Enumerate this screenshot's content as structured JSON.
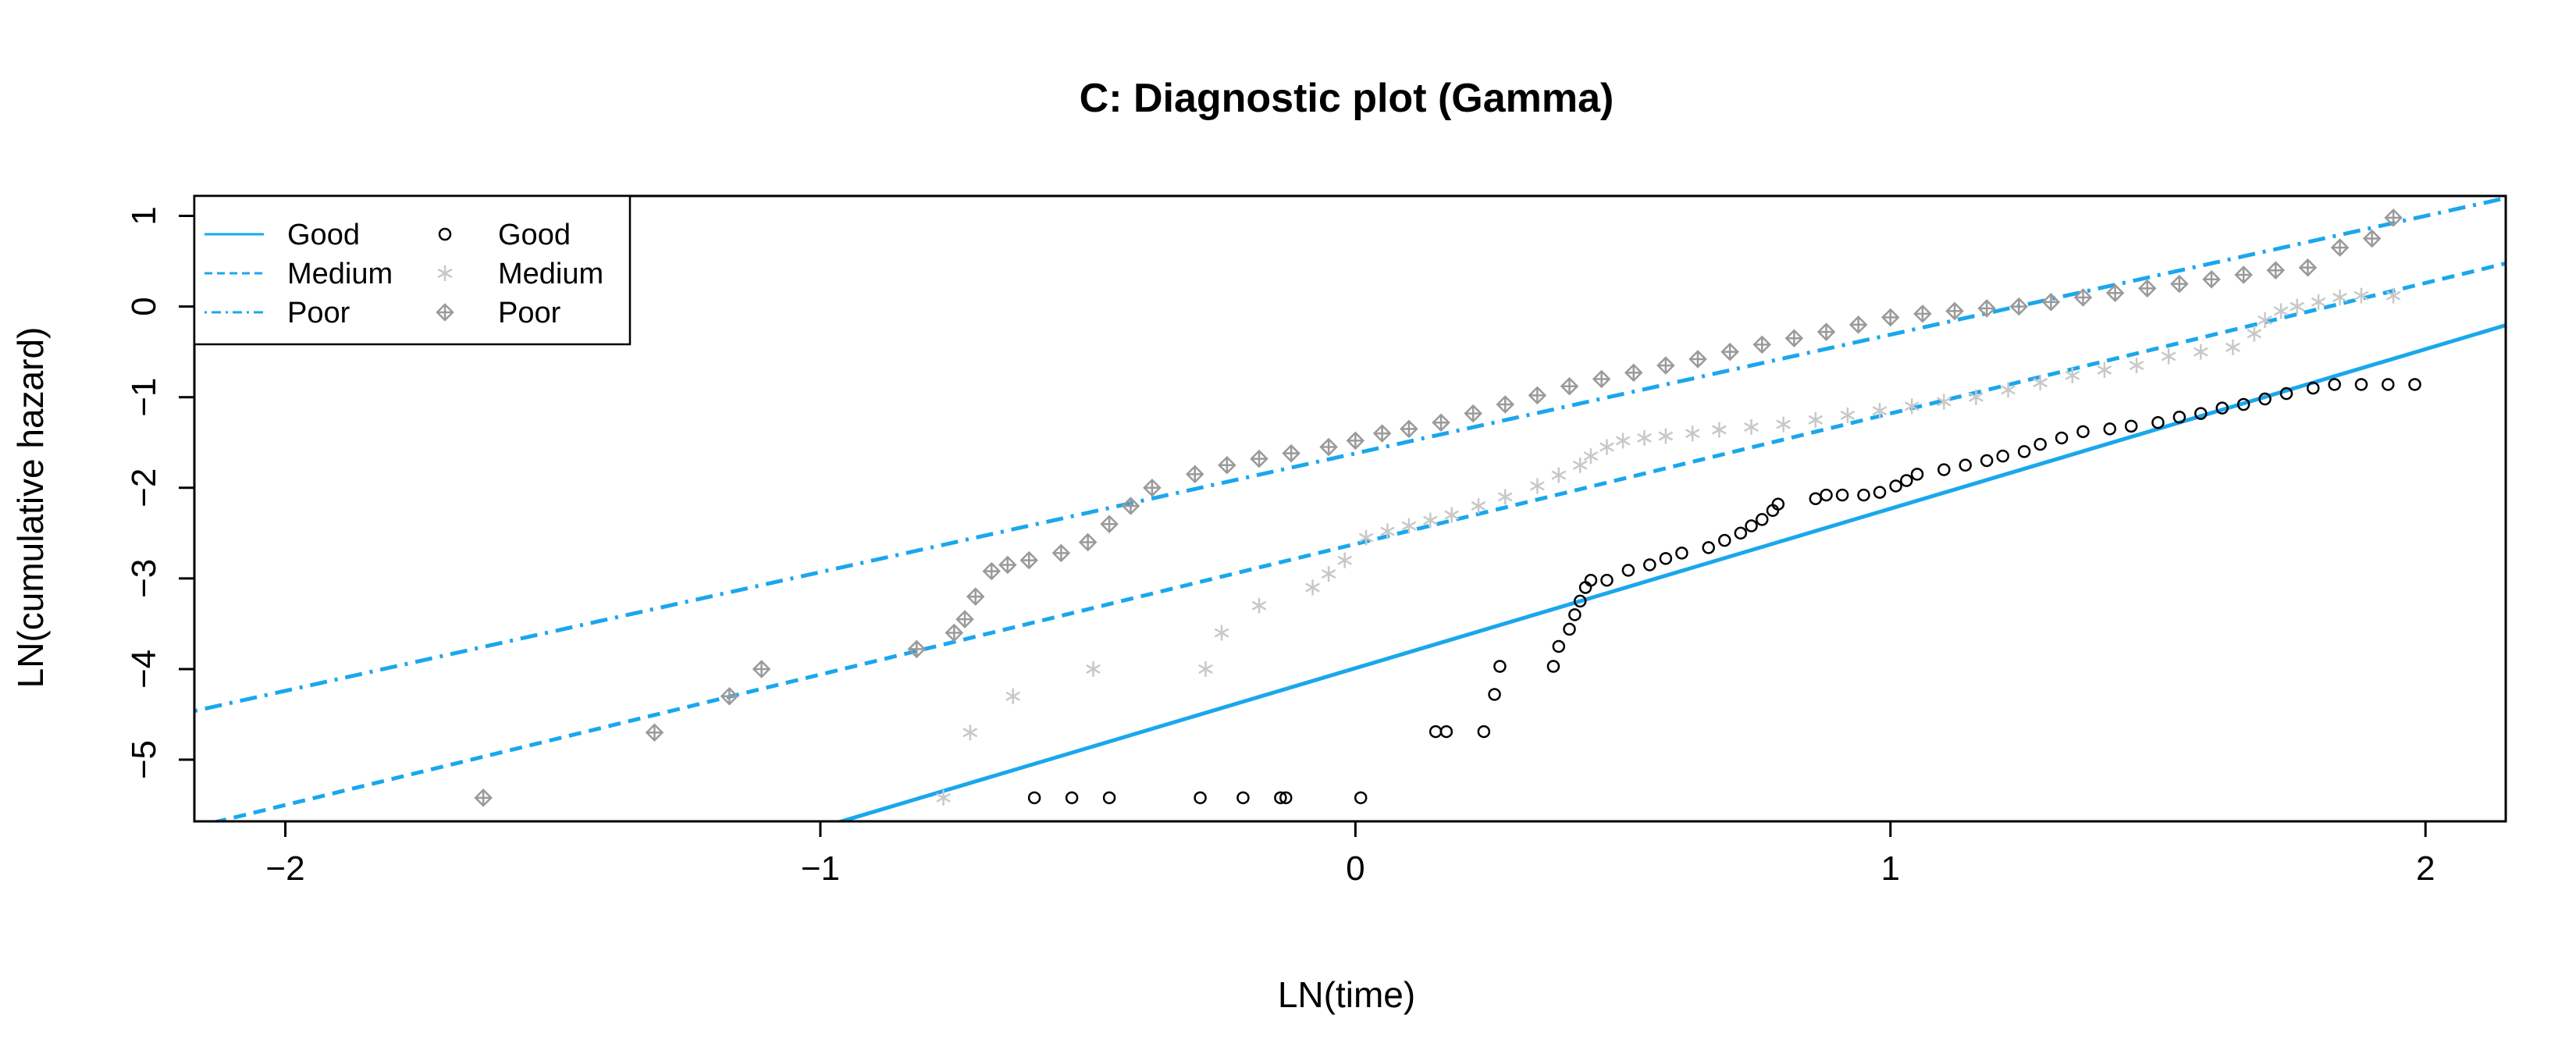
{
  "chart_data": {
    "type": "scatter",
    "title": "C: Diagnostic plot (Gamma)",
    "xlabel": "LN(time)",
    "ylabel": "LN(cumulative hazard)",
    "xlim": [
      -2.17,
      2.15
    ],
    "ylim": [
      -5.68,
      1.22
    ],
    "xticks": [
      -2,
      -1,
      0,
      1,
      2
    ],
    "yticks": [
      -5,
      -4,
      -3,
      -2,
      -1,
      0,
      1
    ],
    "grid": false,
    "legend_position": "top-left",
    "colors": {
      "line": "#1aa7ec",
      "good_points": "#000000",
      "medium_points": "#c8c8c8",
      "poor_points": "#9a9a9a"
    },
    "lines": [
      {
        "name": "Good",
        "style": "solid",
        "intercept": -3.99,
        "slope": 1.76
      },
      {
        "name": "Medium",
        "style": "dashed",
        "intercept": -2.62,
        "slope": 1.44
      },
      {
        "name": "Poor",
        "style": "dotdash",
        "intercept": -1.62,
        "slope": 1.31
      }
    ],
    "series": [
      {
        "name": "Good",
        "marker": "circle",
        "x": [
          -0.6,
          -0.53,
          -0.46,
          -0.29,
          -0.21,
          -0.14,
          -0.13,
          0.01,
          0.15,
          0.17,
          0.24,
          0.26,
          0.27,
          0.37,
          0.38,
          0.4,
          0.41,
          0.42,
          0.43,
          0.44,
          0.47,
          0.51,
          0.55,
          0.58,
          0.61,
          0.66,
          0.69,
          0.72,
          0.74,
          0.76,
          0.78,
          0.79,
          0.86,
          0.88,
          0.91,
          0.95,
          0.98,
          1.01,
          1.03,
          1.05,
          1.1,
          1.14,
          1.18,
          1.21,
          1.25,
          1.28,
          1.32,
          1.36,
          1.41,
          1.45,
          1.5,
          1.54,
          1.58,
          1.62,
          1.66,
          1.7,
          1.74,
          1.79,
          1.83,
          1.88,
          1.93,
          1.98
        ],
        "y": [
          -5.42,
          -5.42,
          -5.42,
          -5.42,
          -5.42,
          -5.42,
          -5.42,
          -5.42,
          -4.69,
          -4.69,
          -4.69,
          -4.28,
          -3.97,
          -3.97,
          -3.75,
          -3.56,
          -3.4,
          -3.25,
          -3.1,
          -3.02,
          -3.02,
          -2.91,
          -2.85,
          -2.78,
          -2.72,
          -2.66,
          -2.58,
          -2.5,
          -2.42,
          -2.35,
          -2.25,
          -2.18,
          -2.12,
          -2.08,
          -2.08,
          -2.08,
          -2.05,
          -1.98,
          -1.92,
          -1.85,
          -1.8,
          -1.75,
          -1.7,
          -1.65,
          -1.6,
          -1.52,
          -1.45,
          -1.38,
          -1.35,
          -1.32,
          -1.28,
          -1.22,
          -1.18,
          -1.12,
          -1.08,
          -1.02,
          -0.96,
          -0.9,
          -0.86,
          -0.86,
          -0.86,
          -0.86
        ]
      },
      {
        "name": "Medium",
        "marker": "asterisk",
        "x": [
          -0.77,
          -0.72,
          -0.64,
          -0.49,
          -0.28,
          -0.25,
          -0.18,
          -0.08,
          -0.05,
          -0.02,
          0.02,
          0.06,
          0.1,
          0.14,
          0.18,
          0.23,
          0.28,
          0.34,
          0.38,
          0.42,
          0.44,
          0.47,
          0.5,
          0.54,
          0.58,
          0.63,
          0.68,
          0.74,
          0.8,
          0.86,
          0.92,
          0.98,
          1.04,
          1.1,
          1.16,
          1.22,
          1.28,
          1.34,
          1.4,
          1.46,
          1.52,
          1.58,
          1.64,
          1.68,
          1.7,
          1.73,
          1.76,
          1.8,
          1.84,
          1.88,
          1.94
        ],
        "y": [
          -5.42,
          -4.7,
          -4.3,
          -4.0,
          -4.0,
          -3.6,
          -3.3,
          -3.1,
          -2.95,
          -2.8,
          -2.55,
          -2.48,
          -2.42,
          -2.36,
          -2.3,
          -2.2,
          -2.1,
          -1.98,
          -1.86,
          -1.75,
          -1.65,
          -1.55,
          -1.48,
          -1.45,
          -1.43,
          -1.4,
          -1.36,
          -1.33,
          -1.3,
          -1.25,
          -1.2,
          -1.15,
          -1.1,
          -1.05,
          -1.0,
          -0.92,
          -0.84,
          -0.76,
          -0.7,
          -0.65,
          -0.55,
          -0.5,
          -0.45,
          -0.3,
          -0.15,
          -0.05,
          0.0,
          0.05,
          0.1,
          0.12,
          0.12
        ]
      },
      {
        "name": "Poor",
        "marker": "diamond-plus",
        "x": [
          -1.63,
          -1.31,
          -1.17,
          -1.11,
          -0.82,
          -0.75,
          -0.73,
          -0.71,
          -0.68,
          -0.65,
          -0.61,
          -0.55,
          -0.5,
          -0.46,
          -0.42,
          -0.38,
          -0.3,
          -0.24,
          -0.18,
          -0.12,
          -0.05,
          0.0,
          0.05,
          0.1,
          0.16,
          0.22,
          0.28,
          0.34,
          0.4,
          0.46,
          0.52,
          0.58,
          0.64,
          0.7,
          0.76,
          0.82,
          0.88,
          0.94,
          1.0,
          1.06,
          1.12,
          1.18,
          1.24,
          1.3,
          1.36,
          1.42,
          1.48,
          1.54,
          1.6,
          1.66,
          1.72,
          1.78,
          1.84,
          1.9,
          1.94
        ],
        "y": [
          -5.42,
          -4.7,
          -4.3,
          -4.0,
          -3.78,
          -3.6,
          -3.45,
          -3.2,
          -2.92,
          -2.85,
          -2.8,
          -2.72,
          -2.6,
          -2.4,
          -2.2,
          -2.0,
          -1.85,
          -1.75,
          -1.68,
          -1.62,
          -1.55,
          -1.48,
          -1.4,
          -1.35,
          -1.28,
          -1.18,
          -1.08,
          -0.98,
          -0.88,
          -0.8,
          -0.73,
          -0.65,
          -0.58,
          -0.5,
          -0.42,
          -0.35,
          -0.28,
          -0.2,
          -0.12,
          -0.08,
          -0.05,
          -0.02,
          0.0,
          0.05,
          0.1,
          0.15,
          0.2,
          0.25,
          0.3,
          0.35,
          0.4,
          0.43,
          0.65,
          0.75,
          0.98
        ]
      }
    ]
  },
  "legend": {
    "lines": [
      {
        "label": "Good",
        "style": "solid"
      },
      {
        "label": "Medium",
        "style": "dashed"
      },
      {
        "label": "Poor",
        "style": "dotdash"
      }
    ],
    "points": [
      {
        "label": "Good",
        "marker": "circle"
      },
      {
        "label": "Medium",
        "marker": "asterisk"
      },
      {
        "label": "Poor",
        "marker": "diamond-plus"
      }
    ]
  }
}
